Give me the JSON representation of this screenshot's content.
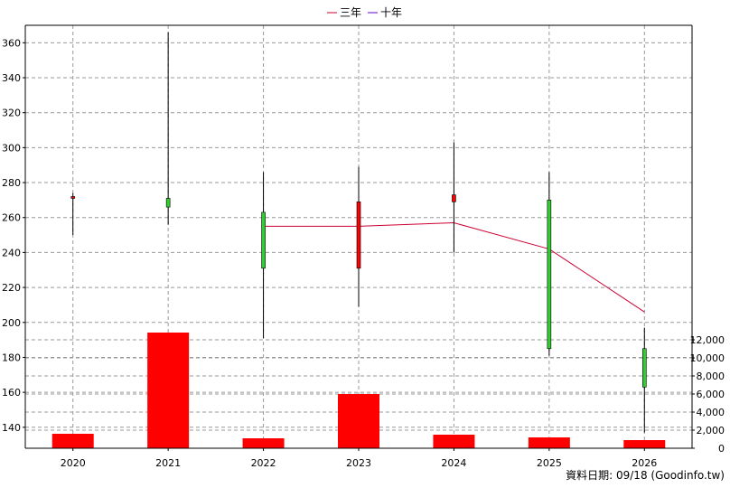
{
  "legend": [
    {
      "label": "三年",
      "color": "#cc0033"
    },
    {
      "label": "十年",
      "color": "#6600cc"
    }
  ],
  "footer_text": "資料日期: 09/18  (Goodinfo.tw)",
  "chart_data": {
    "type": "candlestick",
    "categories": [
      "2020",
      "2021",
      "2022",
      "2023",
      "2024",
      "2025",
      "2026"
    ],
    "price_axis": {
      "ylim": [
        128,
        370
      ],
      "ticks": [
        140,
        160,
        180,
        200,
        220,
        240,
        260,
        280,
        300,
        320,
        340,
        360
      ],
      "side": "left"
    },
    "volume_axis": {
      "ylim": [
        0,
        13000
      ],
      "ticks": [
        "0",
        "2,000",
        "4,000",
        "6,000",
        "8,000",
        "10,000",
        "12,000"
      ],
      "tick_values": [
        0,
        2000,
        4000,
        6000,
        8000,
        10000,
        12000
      ],
      "side": "right"
    },
    "candles": [
      {
        "x": "2020",
        "open": 271,
        "close": 272,
        "high": 274,
        "low": 250,
        "color": "#ff0000"
      },
      {
        "x": "2021",
        "open": 271,
        "close": 266,
        "high": 366,
        "low": 256,
        "color": "#33cc33"
      },
      {
        "x": "2022",
        "open": 263,
        "close": 231,
        "high": 286,
        "low": 191,
        "color": "#33cc33"
      },
      {
        "x": "2023",
        "open": 231,
        "close": 269,
        "high": 289,
        "low": 209,
        "color": "#ff0000"
      },
      {
        "x": "2024",
        "open": 269,
        "close": 273,
        "high": 303,
        "low": 240,
        "color": "#ff0000"
      },
      {
        "x": "2025",
        "open": 270,
        "close": 185,
        "high": 286,
        "low": 181,
        "color": "#33cc33"
      },
      {
        "x": "2026",
        "open": 185,
        "close": 163,
        "high": 197,
        "low": 137,
        "color": "#33cc33"
      }
    ],
    "series": [
      {
        "name": "三年",
        "color": "#cc0033",
        "points": [
          {
            "x": "2022",
            "y": 255
          },
          {
            "x": "2023",
            "y": 255
          },
          {
            "x": "2024",
            "y": 257
          },
          {
            "x": "2025",
            "y": 242
          },
          {
            "x": "2026",
            "y": 206
          }
        ]
      }
    ],
    "volume": {
      "color": "#ff0000",
      "values": [
        1600,
        12800,
        1100,
        6000,
        1500,
        1200,
        900
      ]
    },
    "grid": true
  }
}
